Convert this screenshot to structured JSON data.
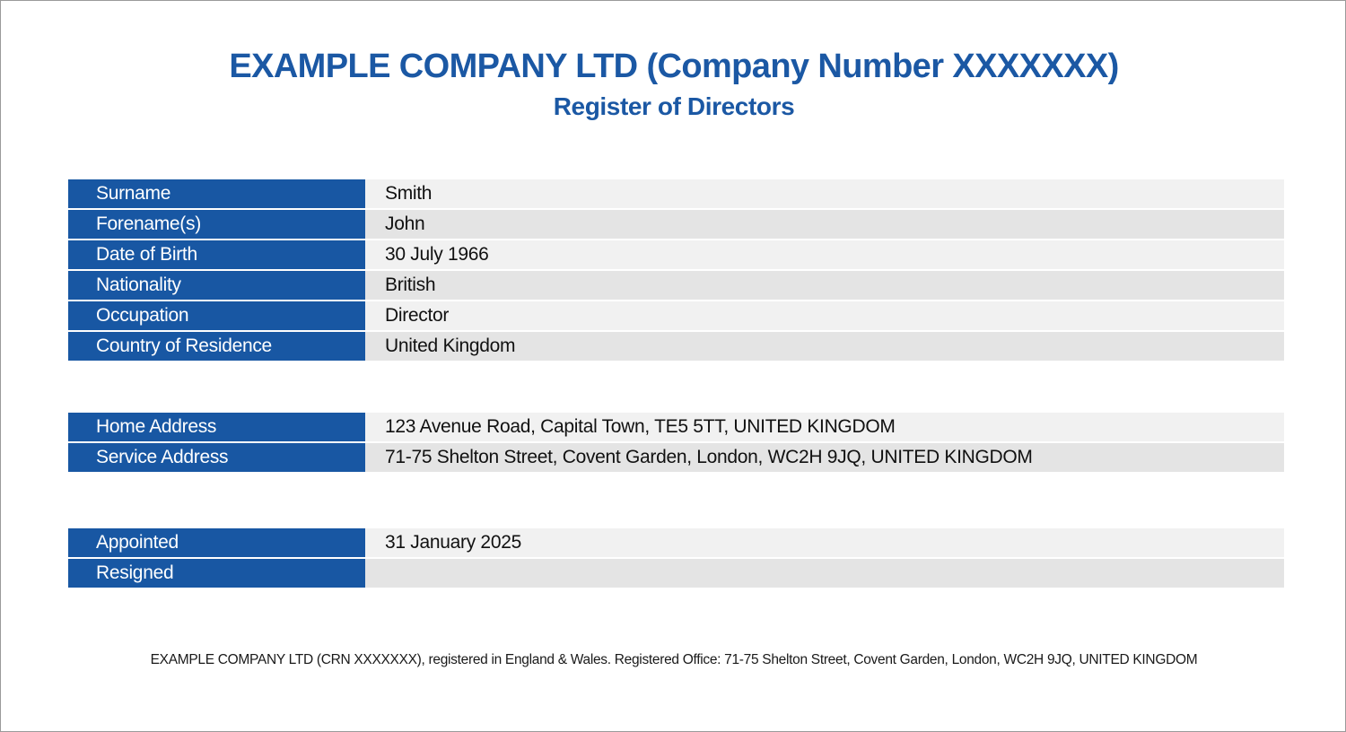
{
  "header": {
    "title": "EXAMPLE COMPANY LTD (Company Number XXXXXXX)",
    "subtitle": "Register of Directors"
  },
  "personal": [
    {
      "label": "Surname",
      "value": "Smith"
    },
    {
      "label": "Forename(s)",
      "value": "John"
    },
    {
      "label": "Date of Birth",
      "value": "30 July 1966"
    },
    {
      "label": "Nationality",
      "value": "British"
    },
    {
      "label": "Occupation",
      "value": "Director"
    },
    {
      "label": "Country of Residence",
      "value": "United Kingdom"
    }
  ],
  "addresses": [
    {
      "label": "Home Address",
      "value": "123 Avenue Road, Capital Town, TE5 5TT, UNITED KINGDOM"
    },
    {
      "label": "Service Address",
      "value": "71-75 Shelton Street, Covent Garden, London, WC2H 9JQ, UNITED KINGDOM"
    }
  ],
  "appointment": [
    {
      "label": "Appointed",
      "value": "31 January 2025"
    },
    {
      "label": "Resigned",
      "value": ""
    }
  ],
  "footer": {
    "text": "EXAMPLE COMPANY LTD (CRN XXXXXXX), registered in England & Wales. Registered Office: 71-75 Shelton Street, Covent Garden, London, WC2H 9JQ, UNITED KINGDOM"
  },
  "colors": {
    "brand_blue": "#1857a3",
    "row_light": "#f1f1f1",
    "row_dark": "#e4e4e4"
  }
}
